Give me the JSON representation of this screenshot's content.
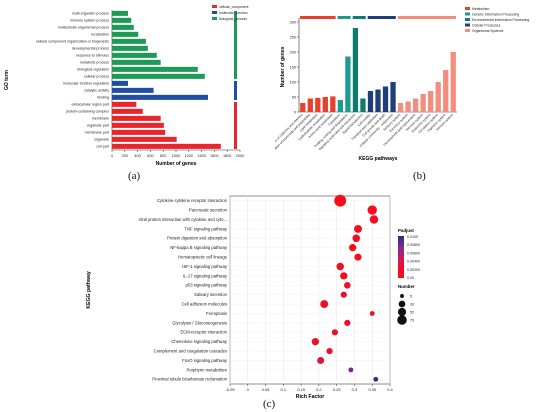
{
  "panel_labels": {
    "a": "(a)",
    "b": "(b)",
    "c": "(c)"
  },
  "chart_data": [
    {
      "panel": "a",
      "type": "bar",
      "orientation": "horizontal",
      "xlabel": "Number of genes",
      "ylabel": "GO term",
      "xlim": [
        0,
        2000
      ],
      "xticks": [
        0,
        200,
        400,
        600,
        800,
        1000,
        1200,
        1400,
        1600,
        1800,
        2000
      ],
      "legend": [
        {
          "name": "cellular_component",
          "color": "#e8262b"
        },
        {
          "name": "molecular_function",
          "color": "#1f4ea3"
        },
        {
          "name": "biological_process",
          "color": "#1f9a55"
        }
      ],
      "legend_position": "top-right",
      "categories": [
        "multi-organism process",
        "immune system process",
        "multicellular organismal process",
        "localization",
        "cellular component organization or biogenesis",
        "developmental process",
        "response to stimulus",
        "metabolic process",
        "biological regulation",
        "cellular process",
        "molecular function regulation",
        "catalytic activity",
        "binding",
        "extracellular region part",
        "protein-containing complex",
        "membrane",
        "organelle part",
        "membrane part",
        "organelle",
        "cell part"
      ],
      "groups": [
        "biological_process",
        "biological_process",
        "biological_process",
        "biological_process",
        "biological_process",
        "biological_process",
        "biological_process",
        "biological_process",
        "biological_process",
        "biological_process",
        "molecular_function",
        "molecular_function",
        "molecular_function",
        "cellular_component",
        "cellular_component",
        "cellular_component",
        "cellular_component",
        "cellular_component",
        "cellular_component",
        "cellular_component"
      ],
      "values": [
        250,
        300,
        340,
        410,
        530,
        560,
        700,
        760,
        1340,
        1450,
        250,
        650,
        1500,
        380,
        480,
        760,
        810,
        830,
        1010,
        1700
      ]
    },
    {
      "panel": "b",
      "type": "bar",
      "xlabel": "KEGG pathways",
      "ylabel": "Number of genes",
      "ylim": [
        0,
        300
      ],
      "yticks": [
        0,
        50,
        100,
        150,
        200,
        250,
        300
      ],
      "legend": [
        {
          "name": "Metabolism",
          "color": "#e8402b"
        },
        {
          "name": "Genetic Information Processing",
          "color": "#1f9a8f"
        },
        {
          "name": "Environmental Information Processing",
          "color": "#0f7a6f"
        },
        {
          "name": "Cellular Processes",
          "color": "#1e3f7a"
        },
        {
          "name": "Organismal Systems",
          "color": "#f28e7d"
        }
      ],
      "legend_position": "top-right",
      "categories": [
        "Metabolism of cofactors and vitamins",
        "Metabolism of terpenoids and polyketides",
        "Lipid metabolism",
        "Carbohydrate metabolism",
        "Amino acid metabolism",
        "Translation",
        "Folding, sorting and degradation",
        "Signaling molecules and interaction",
        "Signal transduction",
        "Cell motility",
        "Transport and catabolism",
        "Cell growth and death",
        "Cellular community - eukaryotes",
        "Sensory system",
        "Excretory system",
        "Development and regeneration",
        "Nervous system",
        "Endocrine system",
        "Circulatory system",
        "Digestive system",
        "Immune system"
      ],
      "groups": [
        "Metabolism",
        "Metabolism",
        "Metabolism",
        "Metabolism",
        "Metabolism",
        "Genetic Information Processing",
        "Genetic Information Processing",
        "Environmental Information Processing",
        "Environmental Information Processing",
        "Cellular Processes",
        "Cellular Processes",
        "Cellular Processes",
        "Cellular Processes",
        "Organismal Systems",
        "Organismal Systems",
        "Organismal Systems",
        "Organismal Systems",
        "Organismal Systems",
        "Organismal Systems",
        "Organismal Systems",
        "Organismal Systems"
      ],
      "values": [
        30,
        45,
        47,
        50,
        52,
        40,
        185,
        280,
        45,
        70,
        75,
        85,
        100,
        30,
        35,
        45,
        60,
        70,
        100,
        140,
        200
      ]
    },
    {
      "panel": "c",
      "type": "scatter",
      "xlabel": "Rich Factor",
      "ylabel": "KEGG pathway",
      "xlim": [
        -0.05,
        0.4
      ],
      "xticks": [
        -0.05,
        0,
        0.05,
        0.1,
        0.15,
        0.2,
        0.25,
        0.3,
        0.35,
        0.4
      ],
      "grid": true,
      "color_legend": {
        "title": "Padjust",
        "ticks": [
          "0.0100",
          "0.00800",
          "0.00600",
          "0.00400",
          "0.00200",
          "0.00"
        ],
        "colors": [
          "#2b2b8f",
          "#7b2a8a",
          "#c4205f",
          "#e8102a",
          "#ff0a1a"
        ]
      },
      "size_legend": {
        "title": "Number",
        "values": [
          5,
          30,
          52,
          75
        ]
      },
      "categories": [
        "Cytokine-cytokine receptor interaction",
        "Pancreatic secretion",
        "Viral protein interaction with cytokine and cyto...",
        "TNF signaling pathway",
        "Protein digestion and absorption",
        "NF-kappa B signaling pathway",
        "Hematopoietic cell lineage",
        "HIF-1 signaling pathway",
        "IL-17 signaling pathway",
        "p53 signaling pathway",
        "Salivary secretion",
        "Cell adhesion molecules",
        "Ferroptosis",
        "Glycolysis / Gluconeogenesis",
        "ECM-receptor interaction",
        "Chemokine signaling pathway",
        "Complement and coagulation cascades",
        "FoxO signaling pathway",
        "Porphyrin metabolism",
        "Proximal tubule bicarbonate reclamation"
      ],
      "x": [
        0.26,
        0.35,
        0.355,
        0.31,
        0.305,
        0.295,
        0.31,
        0.26,
        0.27,
        0.28,
        0.27,
        0.215,
        0.35,
        0.28,
        0.245,
        0.19,
        0.23,
        0.205,
        0.29,
        0.36
      ],
      "number": [
        75,
        40,
        30,
        25,
        22,
        20,
        18,
        22,
        20,
        15,
        12,
        25,
        5,
        12,
        12,
        20,
        12,
        18,
        5,
        5
      ],
      "padjust": [
        0.0001,
        0.0004,
        0.0003,
        0.0005,
        0.0008,
        0.0006,
        0.0008,
        0.001,
        0.001,
        0.0012,
        0.0015,
        0.0012,
        0.0018,
        0.002,
        0.002,
        0.002,
        0.002,
        0.003,
        0.0075,
        0.0095
      ]
    }
  ]
}
